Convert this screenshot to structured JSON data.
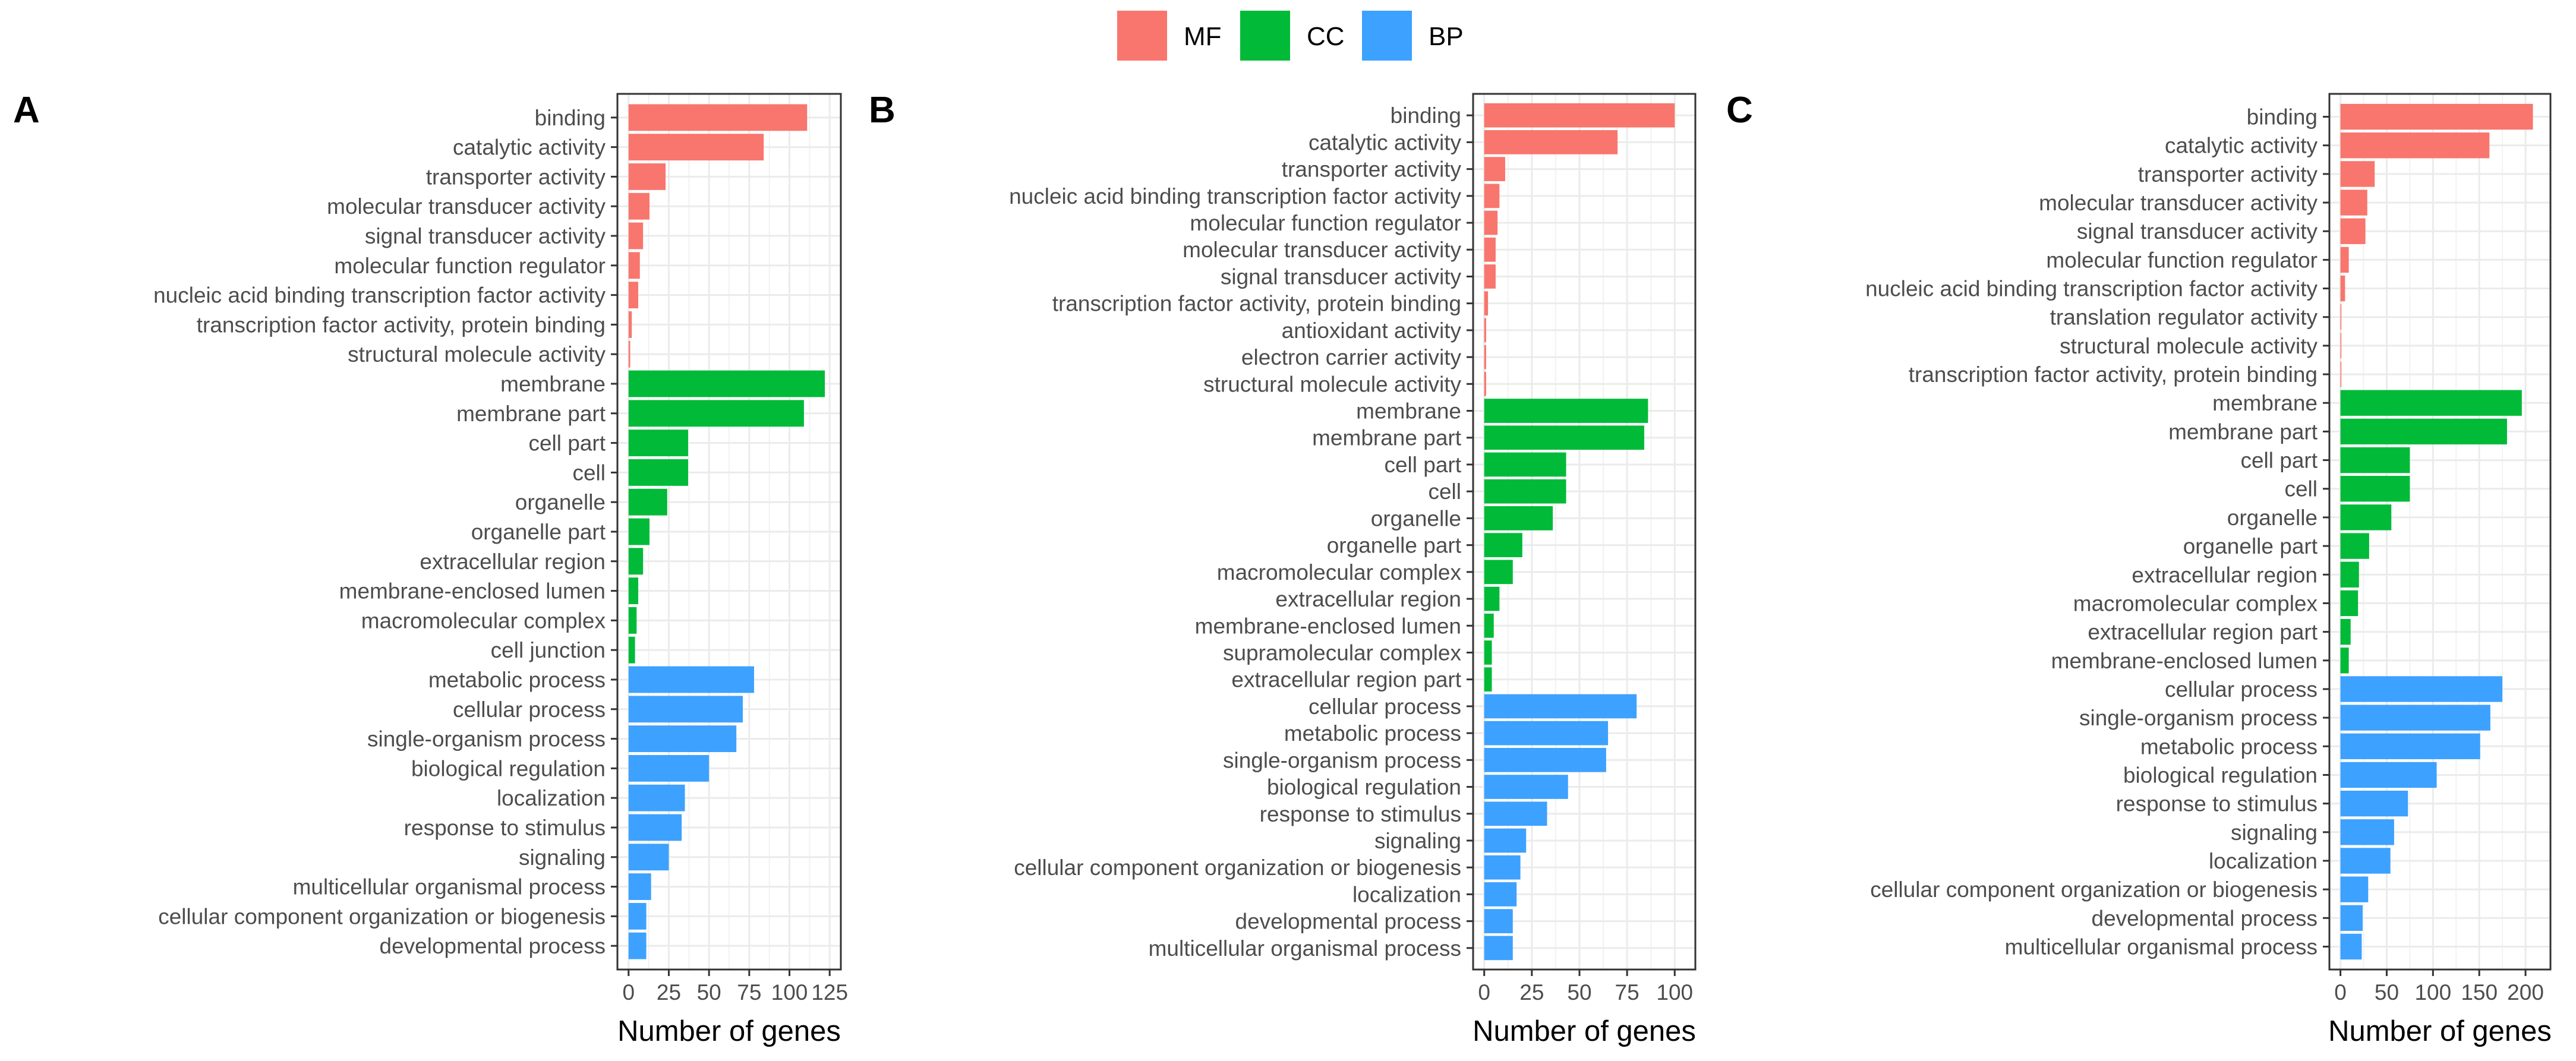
{
  "chart_data": {
    "type": "bar",
    "orientation": "horizontal",
    "legend": [
      {
        "key": "MF",
        "label": "MF",
        "color": "#F8766D"
      },
      {
        "key": "CC",
        "label": "CC",
        "color": "#00BA38"
      },
      {
        "key": "BP",
        "label": "BP",
        "color": "#3DA1FF"
      }
    ],
    "legend_position": "top-center",
    "grid": true,
    "panels": [
      {
        "tag": "A",
        "xlabel": "Number of genes",
        "xlim": [
          0,
          125
        ],
        "ticks": [
          0,
          25,
          50,
          75,
          100,
          125
        ],
        "tick_labels": [
          "0",
          "25",
          "50",
          "75",
          "100",
          "125"
        ],
        "bars": [
          {
            "label": "binding",
            "value": 111,
            "group": "MF"
          },
          {
            "label": "catalytic activity",
            "value": 84,
            "group": "MF"
          },
          {
            "label": "transporter activity",
            "value": 23,
            "group": "MF"
          },
          {
            "label": "molecular transducer activity",
            "value": 13,
            "group": "MF"
          },
          {
            "label": "signal transducer activity",
            "value": 9,
            "group": "MF"
          },
          {
            "label": "molecular function regulator",
            "value": 7,
            "group": "MF"
          },
          {
            "label": "nucleic acid binding transcription factor activity",
            "value": 6,
            "group": "MF"
          },
          {
            "label": "transcription factor activity, protein binding",
            "value": 2,
            "group": "MF"
          },
          {
            "label": "structural molecule activity",
            "value": 1,
            "group": "MF"
          },
          {
            "label": "membrane",
            "value": 122,
            "group": "CC"
          },
          {
            "label": "membrane part",
            "value": 109,
            "group": "CC"
          },
          {
            "label": "cell part",
            "value": 37,
            "group": "CC"
          },
          {
            "label": "cell",
            "value": 37,
            "group": "CC"
          },
          {
            "label": "organelle",
            "value": 24,
            "group": "CC"
          },
          {
            "label": "organelle part",
            "value": 13,
            "group": "CC"
          },
          {
            "label": "extracellular region",
            "value": 9,
            "group": "CC"
          },
          {
            "label": "membrane-enclosed lumen",
            "value": 6,
            "group": "CC"
          },
          {
            "label": "macromolecular complex",
            "value": 5,
            "group": "CC"
          },
          {
            "label": "cell junction",
            "value": 4,
            "group": "CC"
          },
          {
            "label": "metabolic process",
            "value": 78,
            "group": "BP"
          },
          {
            "label": "cellular process",
            "value": 71,
            "group": "BP"
          },
          {
            "label": "single-organism process",
            "value": 67,
            "group": "BP"
          },
          {
            "label": "biological regulation",
            "value": 50,
            "group": "BP"
          },
          {
            "label": "localization",
            "value": 35,
            "group": "BP"
          },
          {
            "label": "response to stimulus",
            "value": 33,
            "group": "BP"
          },
          {
            "label": "signaling",
            "value": 25,
            "group": "BP"
          },
          {
            "label": "multicellular organismal process",
            "value": 14,
            "group": "BP"
          },
          {
            "label": "cellular component organization or biogenesis",
            "value": 11,
            "group": "BP"
          },
          {
            "label": "developmental process",
            "value": 11,
            "group": "BP"
          }
        ]
      },
      {
        "tag": "B",
        "xlabel": "Number of genes",
        "xlim": [
          0,
          105
        ],
        "ticks": [
          0,
          25,
          50,
          75,
          100
        ],
        "tick_labels": [
          "0",
          "25",
          "50",
          "75",
          "100"
        ],
        "bars": [
          {
            "label": "binding",
            "value": 100,
            "group": "MF"
          },
          {
            "label": "catalytic activity",
            "value": 70,
            "group": "MF"
          },
          {
            "label": "transporter activity",
            "value": 11,
            "group": "MF"
          },
          {
            "label": "nucleic acid binding transcription factor activity",
            "value": 8,
            "group": "MF"
          },
          {
            "label": "molecular function regulator",
            "value": 7,
            "group": "MF"
          },
          {
            "label": "molecular transducer activity",
            "value": 6,
            "group": "MF"
          },
          {
            "label": "signal transducer activity",
            "value": 6,
            "group": "MF"
          },
          {
            "label": "transcription factor activity, protein binding",
            "value": 2,
            "group": "MF"
          },
          {
            "label": "antioxidant activity",
            "value": 1,
            "group": "MF"
          },
          {
            "label": "electron carrier activity",
            "value": 1,
            "group": "MF"
          },
          {
            "label": "structural molecule activity",
            "value": 1,
            "group": "MF"
          },
          {
            "label": "membrane",
            "value": 86,
            "group": "CC"
          },
          {
            "label": "membrane part",
            "value": 84,
            "group": "CC"
          },
          {
            "label": "cell part",
            "value": 43,
            "group": "CC"
          },
          {
            "label": "cell",
            "value": 43,
            "group": "CC"
          },
          {
            "label": "organelle",
            "value": 36,
            "group": "CC"
          },
          {
            "label": "organelle part",
            "value": 20,
            "group": "CC"
          },
          {
            "label": "macromolecular complex",
            "value": 15,
            "group": "CC"
          },
          {
            "label": "extracellular region",
            "value": 8,
            "group": "CC"
          },
          {
            "label": "membrane-enclosed lumen",
            "value": 5,
            "group": "CC"
          },
          {
            "label": "supramolecular complex",
            "value": 4,
            "group": "CC"
          },
          {
            "label": "extracellular region part",
            "value": 4,
            "group": "CC"
          },
          {
            "label": "cellular process",
            "value": 80,
            "group": "BP"
          },
          {
            "label": "metabolic process",
            "value": 65,
            "group": "BP"
          },
          {
            "label": "single-organism process",
            "value": 64,
            "group": "BP"
          },
          {
            "label": "biological regulation",
            "value": 44,
            "group": "BP"
          },
          {
            "label": "response to stimulus",
            "value": 33,
            "group": "BP"
          },
          {
            "label": "signaling",
            "value": 22,
            "group": "BP"
          },
          {
            "label": "cellular component organization or biogenesis",
            "value": 19,
            "group": "BP"
          },
          {
            "label": "localization",
            "value": 17,
            "group": "BP"
          },
          {
            "label": "developmental process",
            "value": 15,
            "group": "BP"
          },
          {
            "label": "multicellular organismal process",
            "value": 15,
            "group": "BP"
          }
        ]
      },
      {
        "tag": "C",
        "xlabel": "Number of genes",
        "xlim": [
          0,
          215
        ],
        "ticks": [
          0,
          50,
          100,
          150,
          200
        ],
        "tick_labels": [
          "0",
          "50",
          "100",
          "150",
          "200"
        ],
        "bars": [
          {
            "label": "binding",
            "value": 208,
            "group": "MF"
          },
          {
            "label": "catalytic activity",
            "value": 161,
            "group": "MF"
          },
          {
            "label": "transporter activity",
            "value": 37,
            "group": "MF"
          },
          {
            "label": "molecular transducer activity",
            "value": 29,
            "group": "MF"
          },
          {
            "label": "signal transducer activity",
            "value": 27,
            "group": "MF"
          },
          {
            "label": "molecular function regulator",
            "value": 9,
            "group": "MF"
          },
          {
            "label": "nucleic acid binding transcription factor activity",
            "value": 5,
            "group": "MF"
          },
          {
            "label": "translation regulator activity",
            "value": 1,
            "group": "MF"
          },
          {
            "label": "structural molecule activity",
            "value": 1,
            "group": "MF"
          },
          {
            "label": "transcription factor activity, protein binding",
            "value": 1,
            "group": "MF"
          },
          {
            "label": "membrane",
            "value": 196,
            "group": "CC"
          },
          {
            "label": "membrane part",
            "value": 180,
            "group": "CC"
          },
          {
            "label": "cell part",
            "value": 75,
            "group": "CC"
          },
          {
            "label": "cell",
            "value": 75,
            "group": "CC"
          },
          {
            "label": "organelle",
            "value": 55,
            "group": "CC"
          },
          {
            "label": "organelle part",
            "value": 31,
            "group": "CC"
          },
          {
            "label": "extracellular region",
            "value": 20,
            "group": "CC"
          },
          {
            "label": "macromolecular complex",
            "value": 19,
            "group": "CC"
          },
          {
            "label": "extracellular region part",
            "value": 11,
            "group": "CC"
          },
          {
            "label": "membrane-enclosed lumen",
            "value": 9,
            "group": "CC"
          },
          {
            "label": "cellular process",
            "value": 175,
            "group": "BP"
          },
          {
            "label": "single-organism process",
            "value": 162,
            "group": "BP"
          },
          {
            "label": "metabolic process",
            "value": 151,
            "group": "BP"
          },
          {
            "label": "biological regulation",
            "value": 104,
            "group": "BP"
          },
          {
            "label": "response to stimulus",
            "value": 73,
            "group": "BP"
          },
          {
            "label": "signaling",
            "value": 58,
            "group": "BP"
          },
          {
            "label": "localization",
            "value": 54,
            "group": "BP"
          },
          {
            "label": "cellular component organization or biogenesis",
            "value": 30,
            "group": "BP"
          },
          {
            "label": "developmental process",
            "value": 24,
            "group": "BP"
          },
          {
            "label": "multicellular organismal process",
            "value": 23,
            "group": "BP"
          }
        ]
      }
    ]
  }
}
